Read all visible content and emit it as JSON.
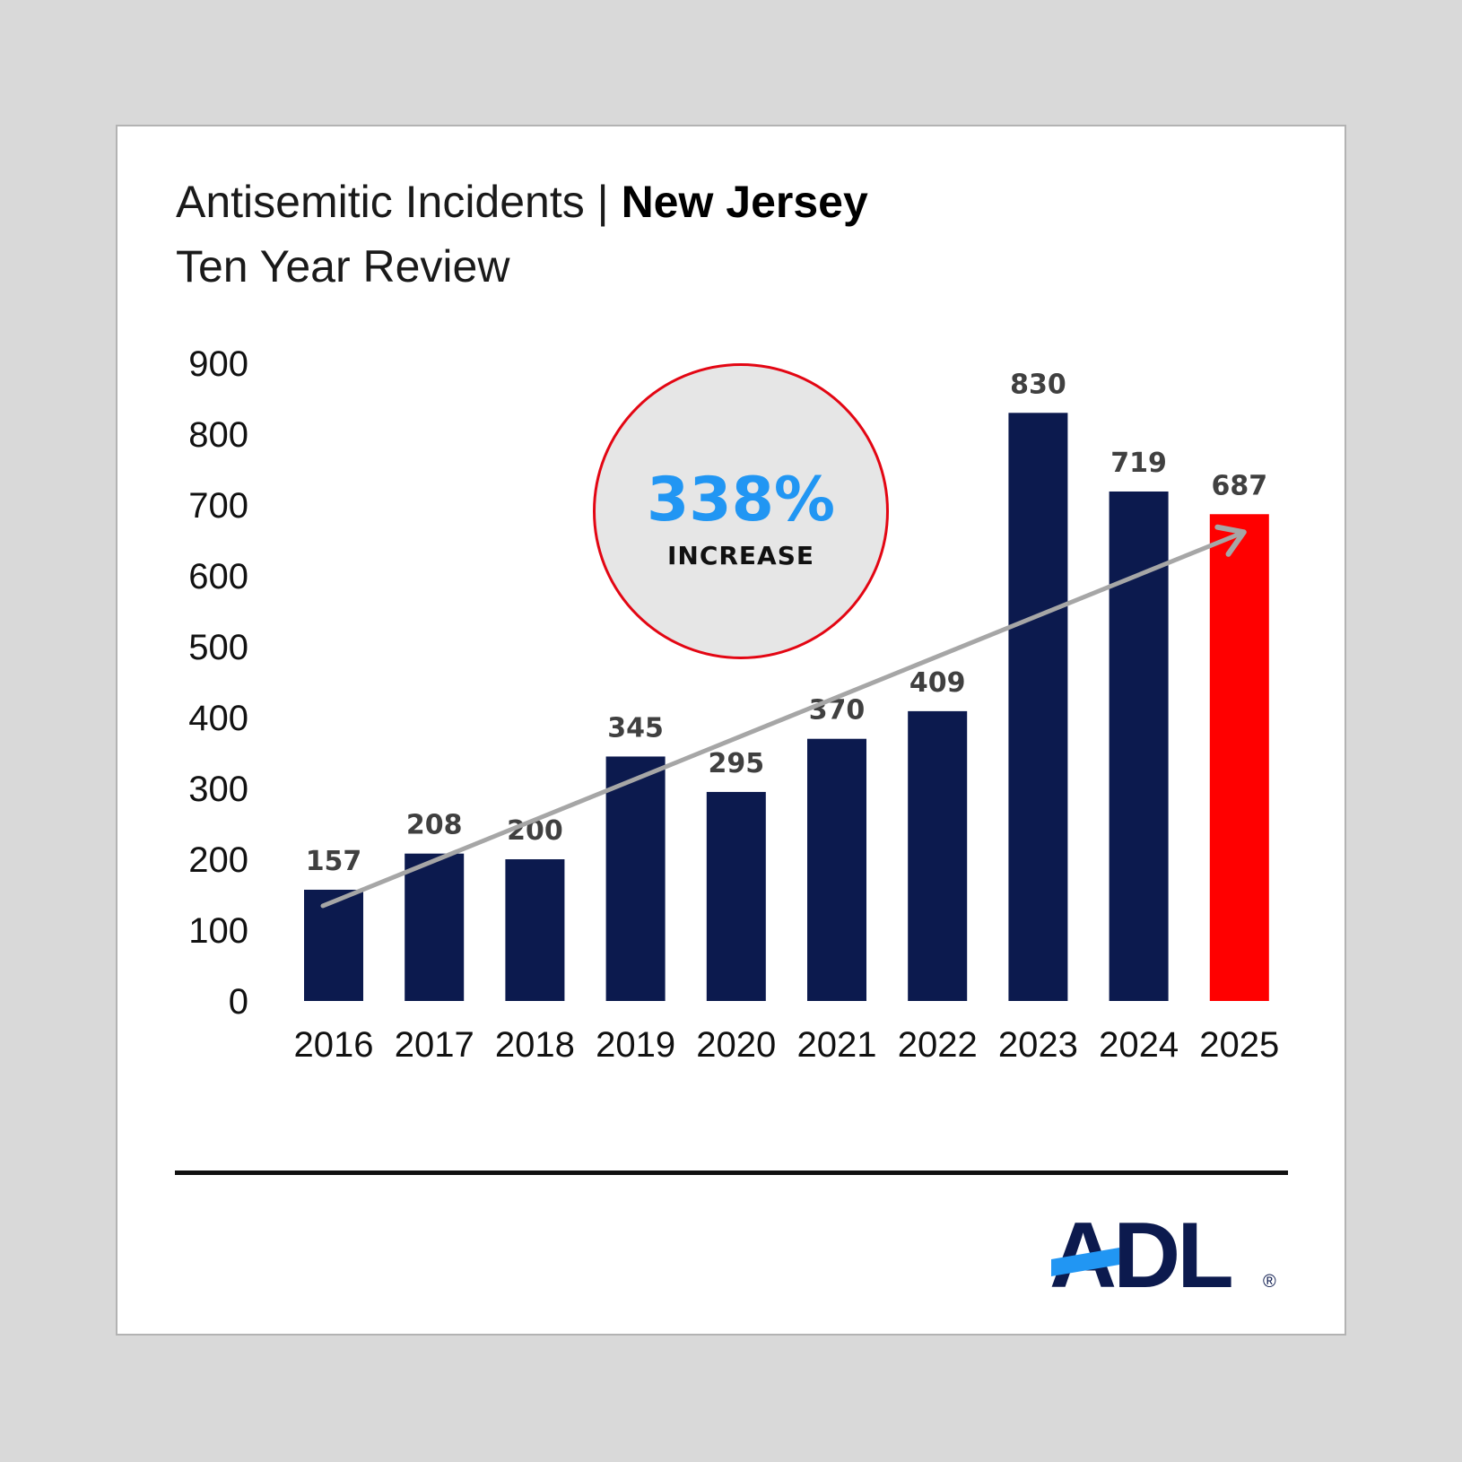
{
  "title": {
    "main": "Antisemitic Incidents",
    "separator": "|",
    "region": "New Jersey",
    "subtitle": "Ten Year Review"
  },
  "badge": {
    "value": "338%",
    "label": "INCREASE",
    "value_color": "#2196f3",
    "ring_color": "#e30613"
  },
  "logo": {
    "text": "ADL",
    "mark": "®",
    "text_color": "#0c1a4e",
    "accent_color": "#2196f3"
  },
  "colors": {
    "bar": "#0c1a4e",
    "highlight_bar": "#ff0000",
    "trend_arrow": "#a6a6a6",
    "value_label": "#404040"
  },
  "chart_data": {
    "type": "bar",
    "categories": [
      "2016",
      "2017",
      "2018",
      "2019",
      "2020",
      "2021",
      "2022",
      "2023",
      "2024",
      "2025"
    ],
    "values": [
      157,
      208,
      200,
      345,
      295,
      370,
      409,
      830,
      719,
      687
    ],
    "value_labels": [
      "157",
      "208",
      "200",
      "345",
      "295",
      "370",
      "409",
      "830",
      "719",
      "687"
    ],
    "highlight_category": "2025",
    "ylim": [
      0,
      900
    ],
    "yticks": [
      "0",
      "100",
      "200",
      "300",
      "400",
      "500",
      "600",
      "700",
      "800",
      "900"
    ],
    "ytick_values": [
      0,
      100,
      200,
      300,
      400,
      500,
      600,
      700,
      800,
      900
    ],
    "xlabel": "",
    "ylabel": "",
    "grid": false,
    "legend": "none",
    "trend_arrow": {
      "from_category": "2016",
      "to_category": "2025",
      "from_value": 157,
      "to_value": 687
    }
  }
}
